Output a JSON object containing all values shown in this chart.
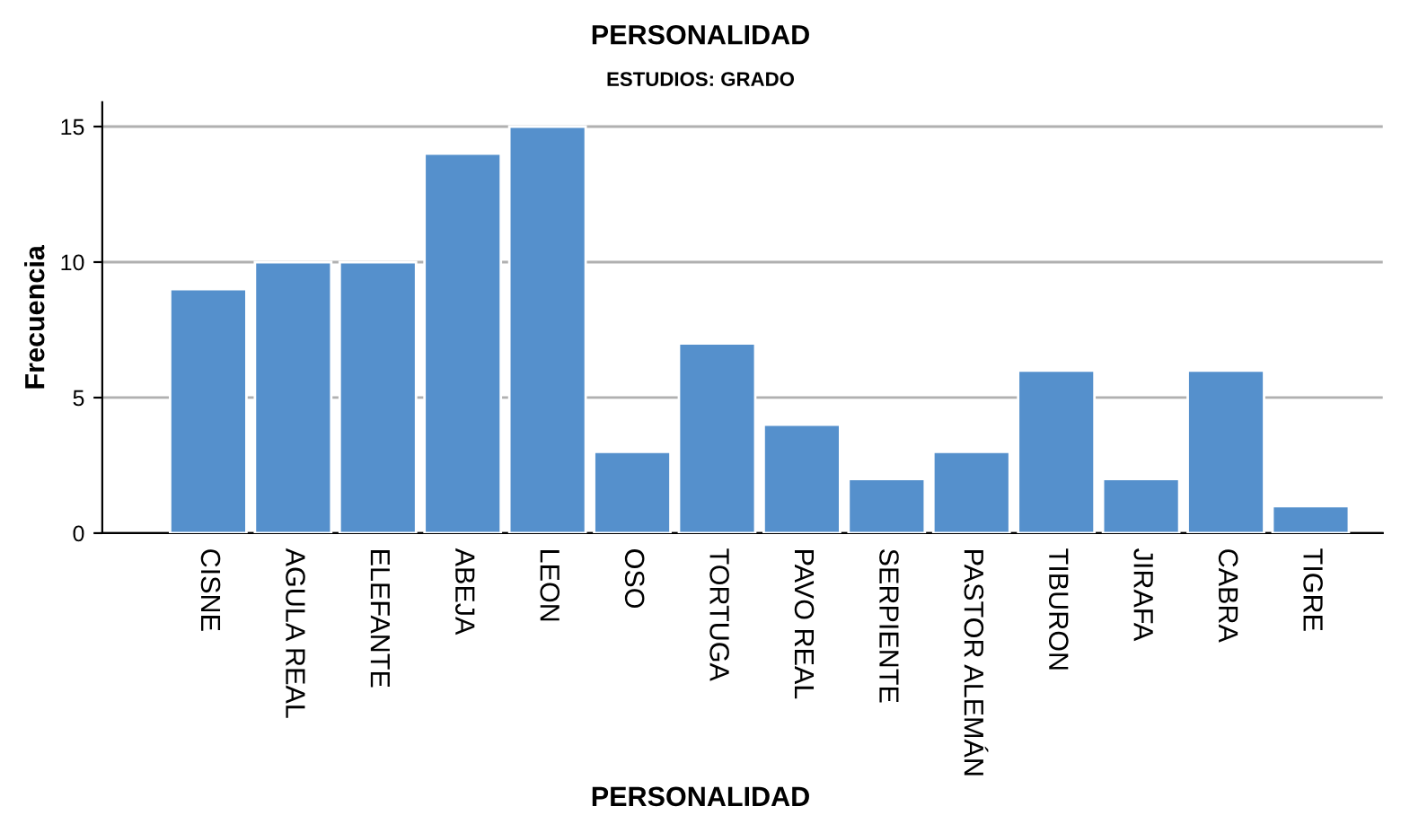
{
  "chart_data": {
    "type": "bar",
    "title": "PERSONALIDAD",
    "subtitle": "ESTUDIOS: GRADO",
    "xlabel": "PERSONALIDAD",
    "ylabel": "Frecuencia",
    "categories": [
      "CISNE",
      "AGULA REAL",
      "ELEFANTE",
      "ABEJA",
      "LEON",
      "OSO",
      "TORTUGA",
      "PAVO REAL",
      "SERPIENTE",
      "PASTOR ALEMÁN",
      "TIBURON",
      "JIRAFA",
      "CABRA",
      "TIGRE"
    ],
    "values": [
      9,
      10,
      10,
      14,
      15,
      3,
      7,
      4,
      2,
      3,
      6,
      2,
      6,
      1
    ],
    "color": "#5590cc",
    "ylim": [
      0,
      15.9
    ],
    "yticks": [
      0,
      5,
      10,
      15
    ],
    "grid": "y"
  }
}
